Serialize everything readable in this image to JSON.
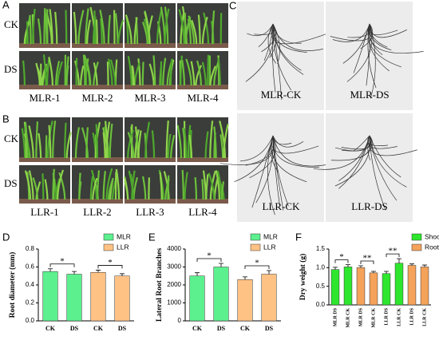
{
  "panels": {
    "A": {
      "letter": "A",
      "rows": [
        "CK",
        "DS"
      ],
      "labels": [
        "MLR-1",
        "MLR-2",
        "MLR-3",
        "MLR-4"
      ]
    },
    "B": {
      "letter": "B",
      "rows": [
        "CK",
        "DS"
      ],
      "labels": [
        "LLR-1",
        "LLR-2",
        "LLR-3",
        "LLR-4"
      ]
    },
    "C": {
      "letter": "C",
      "labels": [
        "MLR-CK",
        "MLR-DS",
        "LLR-CK",
        "LLR-DS"
      ]
    }
  },
  "chart_data": [
    {
      "type": "bar",
      "panel": "D",
      "y_label": "Root diameter (mm)",
      "categories": [
        "CK",
        "DS",
        "CK",
        "DS"
      ],
      "series": [
        {
          "name": "MLR",
          "color": "#5cf08e",
          "values": [
            0.55,
            0.52,
            null,
            null
          ],
          "errors": [
            0.03,
            0.03,
            null,
            null
          ]
        },
        {
          "name": "LLR",
          "color": "#ffc285",
          "values": [
            null,
            null,
            0.54,
            0.5
          ],
          "errors": [
            null,
            null,
            0.025,
            0.025
          ]
        }
      ],
      "ylim": [
        0,
        0.8
      ],
      "yticks": [
        {
          "value": 0,
          "label": "0.0"
        },
        {
          "value": 0.2,
          "label": "0.2"
        },
        {
          "value": 0.4,
          "label": "0.4"
        },
        {
          "value": 0.6,
          "label": "0.6"
        },
        {
          "value": 0.8,
          "label": "0.8"
        }
      ],
      "annotations": [
        "*",
        "*"
      ]
    },
    {
      "type": "bar",
      "panel": "E",
      "y_label": "Lateral Root Branches",
      "categories": [
        "CK",
        "DS",
        "CK",
        "DS"
      ],
      "series": [
        {
          "name": "MLR",
          "color": "#5cf08e",
          "values": [
            2500,
            3000,
            null,
            null
          ],
          "errors": [
            180,
            200,
            null,
            null
          ]
        },
        {
          "name": "LLR",
          "color": "#ffc285",
          "values": [
            null,
            null,
            2300,
            2600
          ],
          "errors": [
            null,
            null,
            150,
            200
          ]
        }
      ],
      "ylim": [
        0,
        4000
      ],
      "yticks": [
        0,
        1000,
        2000,
        3000,
        4000
      ],
      "annotations": [
        "*",
        "*"
      ]
    },
    {
      "type": "bar",
      "panel": "F",
      "y_label": "Dry weight (g)",
      "categories": [
        "MLR DS",
        "MLR CK",
        "MLR DS",
        "MLR CK",
        "LLR DS",
        "LLR CK",
        "LLR DS",
        "LLR CK"
      ],
      "series": [
        {
          "name": "Shoot",
          "color": "#2ee62e",
          "values": [
            0.95,
            1.02,
            null,
            null,
            0.84,
            1.12,
            null,
            null
          ],
          "errors": [
            0.06,
            0.06,
            null,
            null,
            0.06,
            0.12,
            null,
            null
          ]
        },
        {
          "name": "Root",
          "color": "#f5a25a",
          "values": [
            null,
            null,
            1.0,
            0.86,
            null,
            null,
            1.06,
            1.02
          ],
          "errors": [
            null,
            null,
            0.05,
            0.04,
            null,
            null,
            0.04,
            0.05
          ]
        }
      ],
      "ylim": [
        0,
        1.5
      ],
      "yticks": [
        {
          "value": 0,
          "label": "0.0"
        },
        {
          "value": 0.5,
          "label": "0.5"
        },
        {
          "value": 1,
          "label": "1.0"
        },
        {
          "value": 1.5,
          "label": "1.5"
        }
      ],
      "annotations": [
        "*",
        "**",
        "**"
      ]
    }
  ]
}
